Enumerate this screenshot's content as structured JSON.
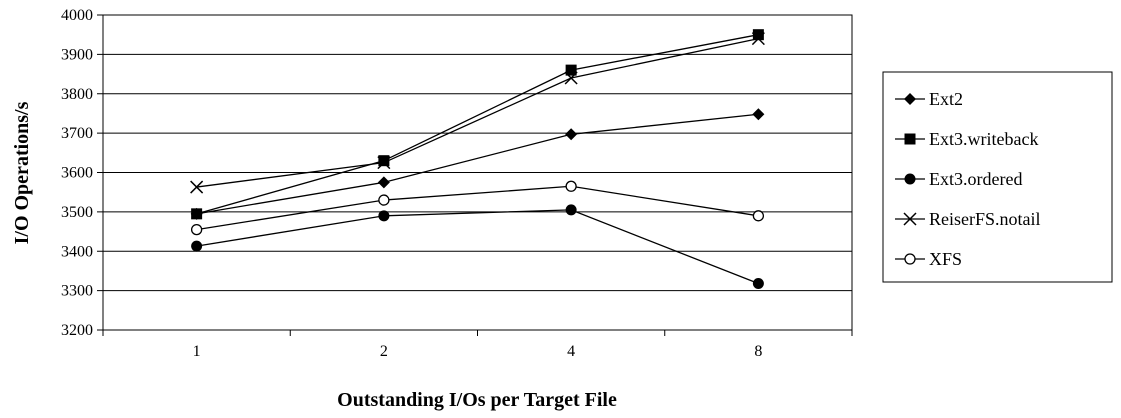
{
  "chart_data": {
    "type": "line",
    "title": "",
    "xlabel": "Outstanding I/Os per Target File",
    "ylabel": "I/O Operations/s",
    "categories": [
      "1",
      "2",
      "4",
      "8"
    ],
    "ylim": [
      3200,
      4000
    ],
    "yticks": [
      3200,
      3300,
      3400,
      3500,
      3600,
      3700,
      3800,
      3900,
      4000
    ],
    "grid": "horizontal",
    "legend": "right",
    "series": [
      {
        "name": "Ext2",
        "marker": "diamond",
        "values": [
          3495,
          3575,
          3697,
          3748
        ]
      },
      {
        "name": "Ext3.writeback",
        "marker": "square",
        "values": [
          3495,
          3630,
          3860,
          3950
        ]
      },
      {
        "name": "Ext3.ordered",
        "marker": "circle-filled",
        "values": [
          3413,
          3490,
          3505,
          3318
        ]
      },
      {
        "name": "ReiserFS.notail",
        "marker": "x",
        "values": [
          3563,
          3625,
          3840,
          3940
        ]
      },
      {
        "name": "XFS",
        "marker": "circle-open",
        "values": [
          3455,
          3530,
          3565,
          3490
        ]
      }
    ],
    "colors": {
      "line": "#000000",
      "grid": "#000000",
      "background": "#ffffff"
    }
  }
}
